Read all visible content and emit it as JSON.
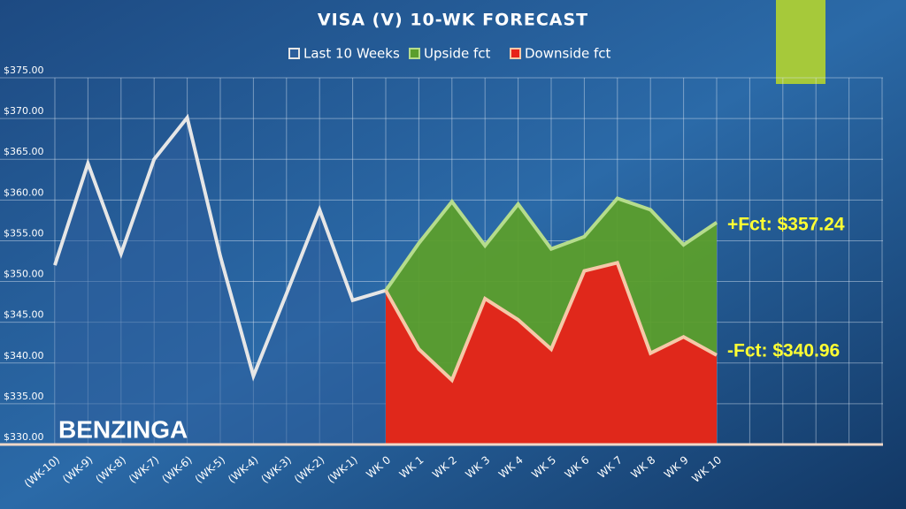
{
  "chart_data": {
    "type": "line",
    "title": "VISA (V) 10-WK FORECAST",
    "categories": [
      "(WK-10)",
      "(WK-9)",
      "(WK-8)",
      "(WK-7)",
      "(WK-6)",
      "(WK-5)",
      "(WK-4)",
      "(WK-3)",
      "(WK-2)",
      "(WK-1)",
      "WK 0",
      "WK 1",
      "WK 2",
      "WK 3",
      "WK 4",
      "WK 5",
      "WK 6",
      "WK 7",
      "WK 8",
      "WK 9",
      "WK 10",
      null,
      null,
      null,
      null,
      null
    ],
    "series": [
      {
        "name": "Last 10 Weeks",
        "color": "#e6e6e6",
        "fill": "#2d5f9c",
        "values": [
          352,
          364.5,
          353.4,
          365,
          370.1,
          353.1,
          338.4,
          348.5,
          358.8,
          347.7,
          348.9,
          null,
          null,
          null,
          null,
          null,
          null,
          null,
          null,
          null,
          null,
          null,
          null,
          null,
          null,
          null
        ]
      },
      {
        "name": "Upside fct",
        "color": "#b5dc8c",
        "fill": "#5b9e2c",
        "values": [
          null,
          null,
          null,
          null,
          null,
          null,
          null,
          null,
          null,
          null,
          348.9,
          354.7,
          359.8,
          354.4,
          359.5,
          354,
          355.5,
          360.2,
          358.8,
          354.5,
          357.24,
          null,
          null,
          null,
          null,
          null
        ]
      },
      {
        "name": "Downside fct",
        "color": "#f5c8a8",
        "fill": "#e8221a",
        "values": [
          null,
          null,
          null,
          null,
          null,
          null,
          null,
          null,
          null,
          null,
          348.9,
          341.7,
          337.9,
          347.9,
          345.3,
          341.7,
          351.3,
          352.3,
          341.2,
          343.2,
          340.96,
          null,
          null,
          null,
          null,
          null
        ]
      }
    ],
    "ylim": [
      330,
      375
    ],
    "yticks": [
      {
        "value": 330,
        "label": "$330.00"
      },
      {
        "value": 335,
        "label": "$335.00"
      },
      {
        "value": 340,
        "label": "$340.00"
      },
      {
        "value": 345,
        "label": "$345.00"
      },
      {
        "value": 350,
        "label": "$350.00"
      },
      {
        "value": 355,
        "label": "$355.00"
      },
      {
        "value": 360,
        "label": "$360.00"
      },
      {
        "value": 365,
        "label": "$365.00"
      },
      {
        "value": 370,
        "label": "$370.00"
      },
      {
        "value": 375,
        "label": "$375.00"
      }
    ],
    "grid": true,
    "legend": "top",
    "annotations": [
      "+Fct: $357.24",
      "-Fct: $340.96"
    ],
    "logo": "BENZINGA"
  }
}
